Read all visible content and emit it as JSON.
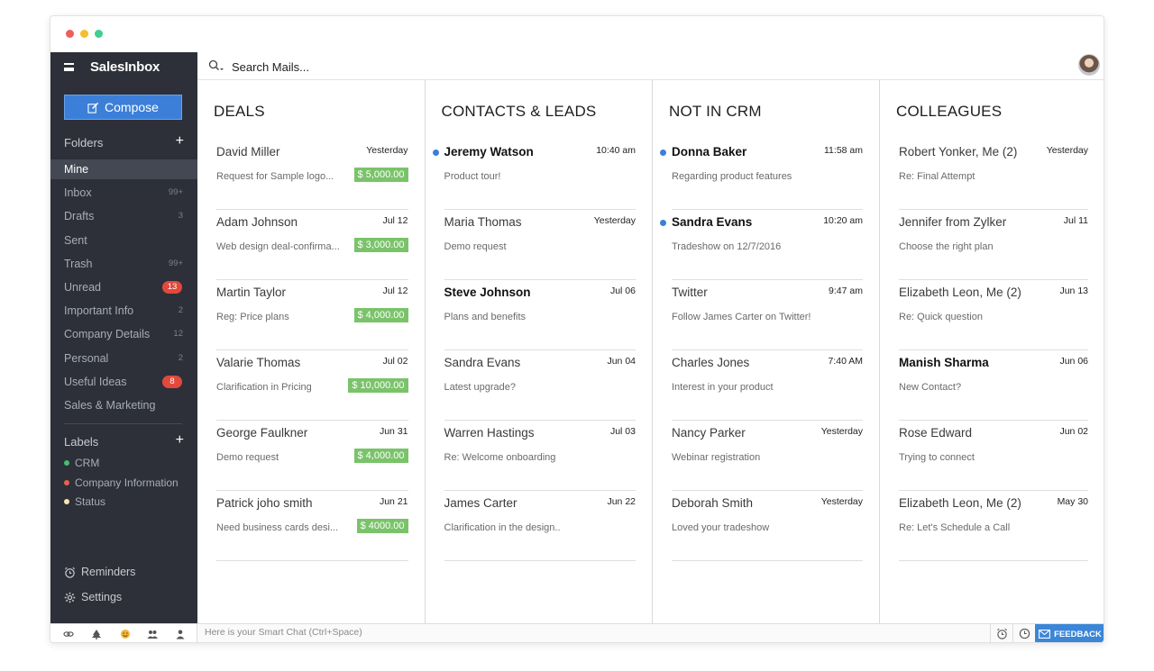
{
  "app": {
    "brand": "SalesInbox"
  },
  "window": {
    "dot_colors": [
      "#ee5f58",
      "#f6be2e",
      "#3fcf8e"
    ]
  },
  "sidebar": {
    "compose_label": "Compose",
    "folders_heading": "Folders",
    "folders": [
      {
        "label": "Mine",
        "count": "",
        "badge": "",
        "active": true
      },
      {
        "label": "Inbox",
        "count": "99+",
        "badge": ""
      },
      {
        "label": "Drafts",
        "count": "3",
        "badge": ""
      },
      {
        "label": "Sent",
        "count": "",
        "badge": ""
      },
      {
        "label": "Trash",
        "count": "99+",
        "badge": ""
      },
      {
        "label": "Unread",
        "count": "",
        "badge": "13"
      },
      {
        "label": "Important Info",
        "count": "2",
        "badge": ""
      },
      {
        "label": "Company Details",
        "count": "12",
        "badge": ""
      },
      {
        "label": "Personal",
        "count": "2",
        "badge": ""
      },
      {
        "label": "Useful Ideas",
        "count": "",
        "badge": "8"
      },
      {
        "label": "Sales & Marketing",
        "count": "",
        "badge": ""
      }
    ],
    "labels_heading": "Labels",
    "labels": [
      {
        "label": "CRM",
        "color": "#3ec26b"
      },
      {
        "label": "Company Information",
        "color": "#e8614c"
      },
      {
        "label": "Status",
        "color": "#f7e7b0"
      }
    ],
    "reminders_label": "Reminders",
    "settings_label": "Settings"
  },
  "search": {
    "placeholder": "Search Mails..."
  },
  "columns": [
    {
      "title": "DEALS",
      "items": [
        {
          "name": "David Miller",
          "time": "Yesterday",
          "subject": "Request for Sample logo...",
          "amount": "$ 5,000.00"
        },
        {
          "name": "Adam Johnson",
          "time": "Jul 12",
          "subject": "Web design deal-confirma...",
          "amount": "$ 3,000.00"
        },
        {
          "name": "Martin Taylor",
          "time": "Jul 12",
          "subject": "Reg: Price plans",
          "amount": "$ 4,000.00"
        },
        {
          "name": "Valarie Thomas",
          "time": "Jul 02",
          "subject": "Clarification in Pricing",
          "amount": "$ 10,000.00"
        },
        {
          "name": "George Faulkner",
          "time": "Jun 31",
          "subject": "Demo request",
          "amount": "$ 4,000.00"
        },
        {
          "name": "Patrick joho smith",
          "time": "Jun 21",
          "subject": "Need business cards desi...",
          "amount": "$ 4000.00"
        }
      ]
    },
    {
      "title": "CONTACTS & LEADS",
      "items": [
        {
          "name": "Jeremy Watson",
          "time": "10:40 am",
          "subject": "Product tour!",
          "unread": true
        },
        {
          "name": "Maria Thomas",
          "time": "Yesterday",
          "subject": "Demo request"
        },
        {
          "name": "Steve Johnson",
          "time": "Jul 06",
          "subject": "Plans and benefits",
          "bold": true
        },
        {
          "name": "Sandra Evans",
          "time": "Jun 04",
          "subject": "Latest upgrade?"
        },
        {
          "name": "Warren Hastings",
          "time": "Jul 03",
          "subject": "Re: Welcome onboarding"
        },
        {
          "name": "James Carter",
          "time": "Jun 22",
          "subject": "Clarification in the design.."
        }
      ]
    },
    {
      "title": "NOT IN CRM",
      "items": [
        {
          "name": "Donna Baker",
          "time": "11:58 am",
          "subject": "Regarding product features",
          "unread": true
        },
        {
          "name": "Sandra Evans",
          "time": "10:20 am",
          "subject": "Tradeshow on 12/7/2016",
          "unread": true
        },
        {
          "name": "Twitter",
          "time": "9:47 am",
          "subject": "Follow James Carter on Twitter!"
        },
        {
          "name": "Charles Jones",
          "time": "7:40 AM",
          "subject": "Interest in your product"
        },
        {
          "name": "Nancy Parker",
          "time": "Yesterday",
          "subject": "Webinar registration"
        },
        {
          "name": "Deborah Smith",
          "time": "Yesterday",
          "subject": "Loved your tradeshow"
        }
      ]
    },
    {
      "title": "COLLEAGUES",
      "items": [
        {
          "name": "Robert Yonker, Me (2)",
          "time": "Yesterday",
          "subject": "Re: Final Attempt"
        },
        {
          "name": "Jennifer from Zylker",
          "time": "Jul 11",
          "subject": "Choose the right plan"
        },
        {
          "name": "Elizabeth Leon, Me (2)",
          "time": "Jun 13",
          "subject": "Re: Quick question"
        },
        {
          "name": "Manish Sharma",
          "time": "Jun 06",
          "subject": "New Contact?",
          "bold": true
        },
        {
          "name": "Rose Edward",
          "time": "Jun 02",
          "subject": "Trying to connect"
        },
        {
          "name": "Elizabeth Leon, Me (2)",
          "time": "May 30",
          "subject": "Re: Let's Schedule a Call"
        }
      ]
    }
  ],
  "bottombar": {
    "smartchat_placeholder": "Here is your Smart Chat (Ctrl+Space)",
    "feedback_label": "FEEDBACK"
  }
}
